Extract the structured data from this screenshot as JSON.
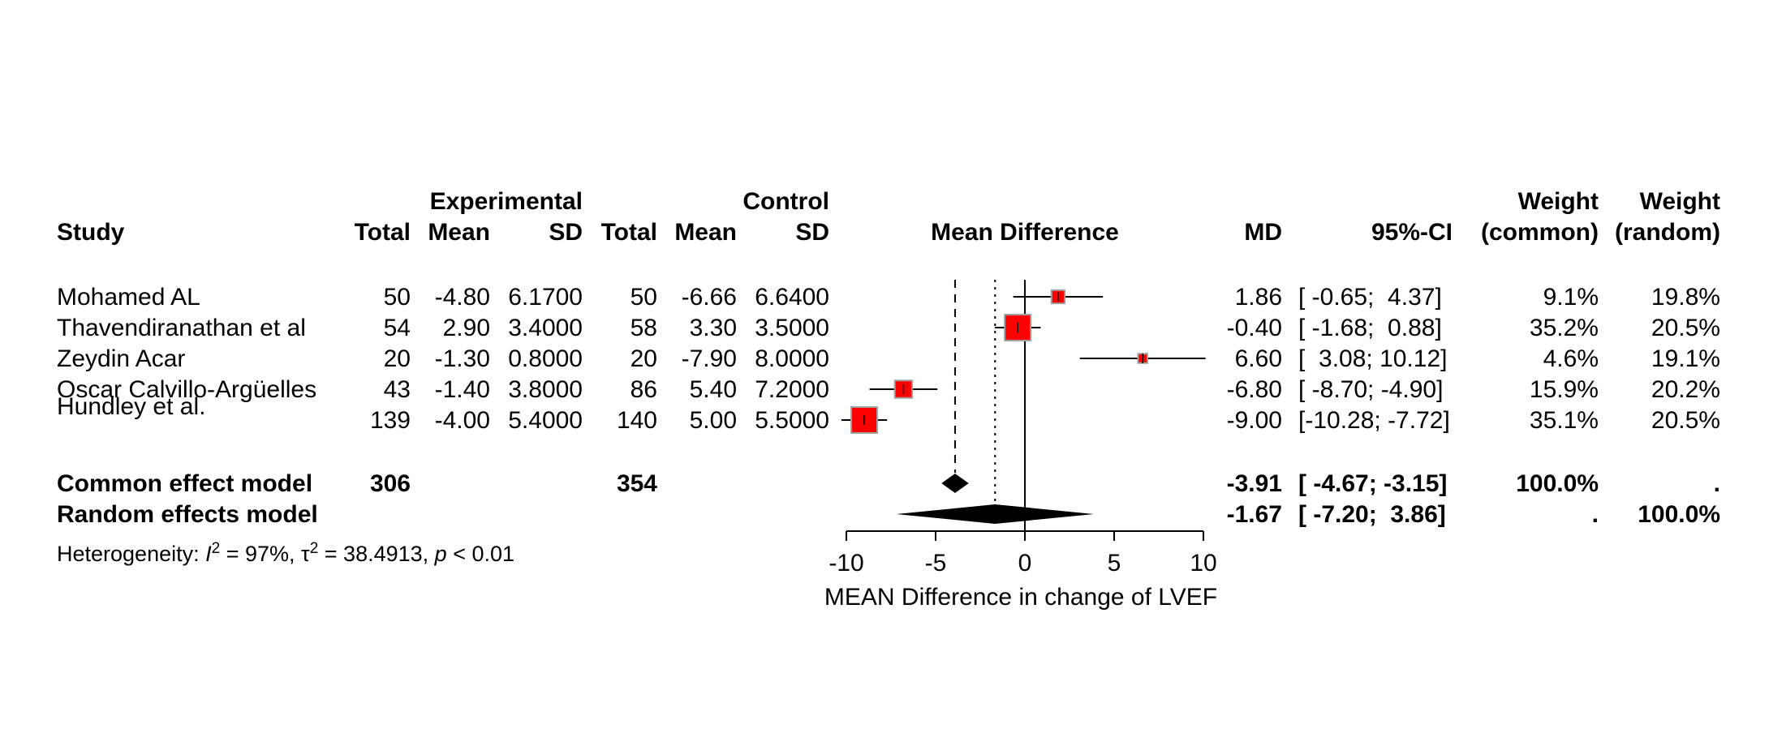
{
  "headers": {
    "experimental": "Experimental",
    "control": "Control",
    "study": "Study",
    "total": "Total",
    "mean": "Mean",
    "sd": "SD",
    "mean_difference": "Mean Difference",
    "md": "MD",
    "ci": "95%-CI",
    "weight": "Weight",
    "common": "(common)",
    "random": "(random)"
  },
  "studies": [
    {
      "name": "Mohamed AL",
      "e_total": "50",
      "e_mean": "-4.80",
      "e_sd": "6.1700",
      "c_total": "50",
      "c_mean": "-6.66",
      "c_sd": "6.6400",
      "md": "1.86",
      "ci": "[ -0.65;  4.37]",
      "w_common": "9.1%",
      "w_random": "19.8%"
    },
    {
      "name": "Thavendiranathan et al",
      "e_total": "54",
      "e_mean": "2.90",
      "e_sd": "3.4000",
      "c_total": "58",
      "c_mean": "3.30",
      "c_sd": "3.5000",
      "md": "-0.40",
      "ci": "[ -1.68;  0.88]",
      "w_common": "35.2%",
      "w_random": "20.5%"
    },
    {
      "name": "Zeydin Acar",
      "e_total": "20",
      "e_mean": "-1.30",
      "e_sd": "0.8000",
      "c_total": "20",
      "c_mean": "-7.90",
      "c_sd": "8.0000",
      "md": "6.60",
      "ci": "[  3.08; 10.12]",
      "w_common": "4.6%",
      "w_random": "19.1%"
    },
    {
      "name": "Oscar Calvillo-Argüelles",
      "e_total": "43",
      "e_mean": "-1.40",
      "e_sd": "3.8000",
      "c_total": "86",
      "c_mean": "5.40",
      "c_sd": "7.2000",
      "md": "-6.80",
      "ci": "[ -8.70; -4.90]",
      "w_common": "15.9%",
      "w_random": "20.2%"
    },
    {
      "name": "Hundley et al.",
      "e_total": "139",
      "e_mean": "-4.00",
      "e_sd": "5.4000",
      "c_total": "140",
      "c_mean": "5.00",
      "c_sd": "5.5000",
      "md": "-9.00",
      "ci": "[-10.28; -7.72]",
      "w_common": "35.1%",
      "w_random": "20.5%"
    }
  ],
  "summary": {
    "common": {
      "label": "Common effect model",
      "e_total": "306",
      "c_total": "354",
      "md": "-3.91",
      "ci": "[ -4.67; -3.15]",
      "w_common": "100.0%",
      "w_random": "."
    },
    "random": {
      "label": "Random effects model",
      "md": "-1.67",
      "ci": "[ -7.20;  3.86]",
      "w_common": ".",
      "w_random": "100.0%"
    }
  },
  "heterogeneity": {
    "prefix": "Heterogeneity: ",
    "i2_symbol": "I",
    "i2_value": " = 97%, ",
    "tau2_symbol": "τ",
    "tau2_value": " = 38.4913, ",
    "p_symbol": "p",
    "p_value": " < 0.01",
    "superscript": "2"
  },
  "colors": {
    "square": "#ff0000",
    "square_border": "#a0a0a0",
    "line": "#000000"
  },
  "chart_data": {
    "type": "forest",
    "xlabel": "MEAN Difference in change of LVEF",
    "xlim": [
      -10,
      10
    ],
    "ticks": [
      -10,
      -5,
      0,
      5,
      10
    ],
    "null_line": 0,
    "studies": [
      {
        "name": "Mohamed AL",
        "md": 1.86,
        "lower": -0.65,
        "upper": 4.37,
        "weight_common": 9.1
      },
      {
        "name": "Thavendiranathan et al",
        "md": -0.4,
        "lower": -1.68,
        "upper": 0.88,
        "weight_common": 35.2
      },
      {
        "name": "Zeydin Acar",
        "md": 6.6,
        "lower": 3.08,
        "upper": 10.12,
        "weight_common": 4.6
      },
      {
        "name": "Oscar Calvillo-Argüelles",
        "md": -6.8,
        "lower": -8.7,
        "upper": -4.9,
        "weight_common": 15.9
      },
      {
        "name": "Hundley et al.",
        "md": -9.0,
        "lower": -10.28,
        "upper": -7.72,
        "weight_common": 35.1
      }
    ],
    "common_effect": {
      "md": -3.91,
      "lower": -4.67,
      "upper": -3.15
    },
    "random_effects": {
      "md": -1.67,
      "lower": -7.2,
      "upper": 3.86
    }
  }
}
